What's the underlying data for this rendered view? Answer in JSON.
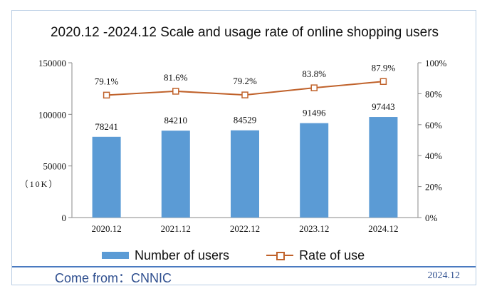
{
  "chart_data": {
    "type": "bar",
    "title": "2020.12 -2024.12 Scale and usage rate of online shopping users",
    "categories": [
      "2020.12",
      "2021.12",
      "2022.12",
      "2023.12",
      "2024.12"
    ],
    "series": [
      {
        "name": "Number of users",
        "type": "bar",
        "axis": "left",
        "values": [
          78241,
          84210,
          84529,
          91496,
          97443
        ],
        "color": "#5b9bd5"
      },
      {
        "name": "Rate of use",
        "type": "line",
        "axis": "right",
        "values": [
          79.1,
          81.6,
          79.2,
          83.8,
          87.9
        ],
        "labels": [
          "79.1%",
          "81.6%",
          "79.2%",
          "83.8%",
          "87.9%"
        ],
        "color": "#c0622b"
      }
    ],
    "left_axis": {
      "ylim": [
        0,
        150000
      ],
      "ticks": [
        "0",
        "50000",
        "100000",
        "150000"
      ],
      "unit_label": "（10K）"
    },
    "right_axis": {
      "ylim": [
        0,
        100
      ],
      "ticks": [
        "0%",
        "20%",
        "40%",
        "60%",
        "80%",
        "100%"
      ]
    },
    "grid": false,
    "legend_position": "bottom"
  },
  "footer": {
    "source": "Come from：CNNIC",
    "date": "2024.12"
  }
}
